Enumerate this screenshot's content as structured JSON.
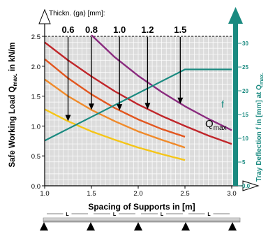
{
  "chart_data": {
    "type": "line",
    "x_axis": {
      "label": "Spacing of Supports in [m]",
      "range": [
        1.0,
        3.0
      ],
      "ticks": [
        "1.0",
        "1.5",
        "2.0",
        "2.5",
        "3.0"
      ]
    },
    "y_axis_left": {
      "label": "Safe Working Load Q",
      "label_sub": "max.",
      "label_unit": " in kN/m",
      "range": [
        0.0,
        2.5
      ],
      "ticks": [
        "0.0",
        "0.5",
        "1.0",
        "1.5",
        "2.0",
        "2.5"
      ]
    },
    "y_axis_right": {
      "label": "Tray Deflection f in [mm] at Q",
      "label_sub": "max.",
      "range": [
        0,
        35
      ],
      "ticks": [
        "0.0",
        "5",
        "10",
        "15",
        "20",
        "25",
        "30"
      ]
    },
    "thickness_title": "Thickn. (ga) [mm]:",
    "series": [
      {
        "name": "0.6",
        "color": "#f5c518",
        "x": [
          1.0,
          1.25,
          1.5,
          1.75,
          2.0,
          2.25,
          2.5
        ],
        "y": [
          1.28,
          1.08,
          0.91,
          0.77,
          0.64,
          0.53,
          0.43
        ]
      },
      {
        "name": "0.8",
        "color": "#f08a2a",
        "x": [
          1.0,
          1.25,
          1.5,
          1.75,
          2.0,
          2.25,
          2.5
        ],
        "y": [
          1.78,
          1.5,
          1.27,
          1.08,
          0.91,
          0.77,
          0.64
        ]
      },
      {
        "name": "1.0",
        "color": "#e2561f",
        "x": [
          1.0,
          1.25,
          1.5,
          1.75,
          2.0,
          2.25,
          2.5
        ],
        "y": [
          2.12,
          1.8,
          1.53,
          1.3,
          1.11,
          0.95,
          0.82
        ]
      },
      {
        "name": "1.2",
        "color": "#c0262a",
        "x": [
          1.0,
          1.25,
          1.5,
          1.75,
          2.0,
          2.25,
          2.5,
          2.75,
          3.0
        ],
        "y": [
          2.4,
          2.1,
          1.83,
          1.58,
          1.36,
          1.17,
          1.0,
          0.84,
          0.7
        ]
      },
      {
        "name": "1.5",
        "color": "#8a2a7e",
        "x": [
          1.5,
          1.75,
          2.0,
          2.25,
          2.5,
          2.75,
          3.0
        ],
        "y": [
          2.52,
          2.15,
          1.84,
          1.57,
          1.33,
          1.12,
          0.93
        ]
      }
    ],
    "deflection": {
      "name": "f",
      "color": "#1a8a80",
      "x": [
        1.0,
        2.4,
        2.5,
        3.0
      ],
      "y": [
        9.5,
        23.5,
        24.5,
        24.5
      ]
    },
    "arrows": [
      {
        "thickness": "0.6",
        "x": 1.25,
        "y_end": 1.08
      },
      {
        "thickness": "0.8",
        "x": 1.5,
        "y_end": 1.27
      },
      {
        "thickness": "1.0",
        "x": 1.8,
        "y_end": 1.26
      },
      {
        "thickness": "1.2",
        "x": 2.1,
        "y_end": 1.28
      },
      {
        "thickness": "1.5",
        "x": 2.45,
        "y_end": 1.37
      }
    ],
    "q_label": "Q",
    "q_label_sub": "max",
    "support_label": "L",
    "grid": true,
    "dashed_top_limit": 2.5
  }
}
